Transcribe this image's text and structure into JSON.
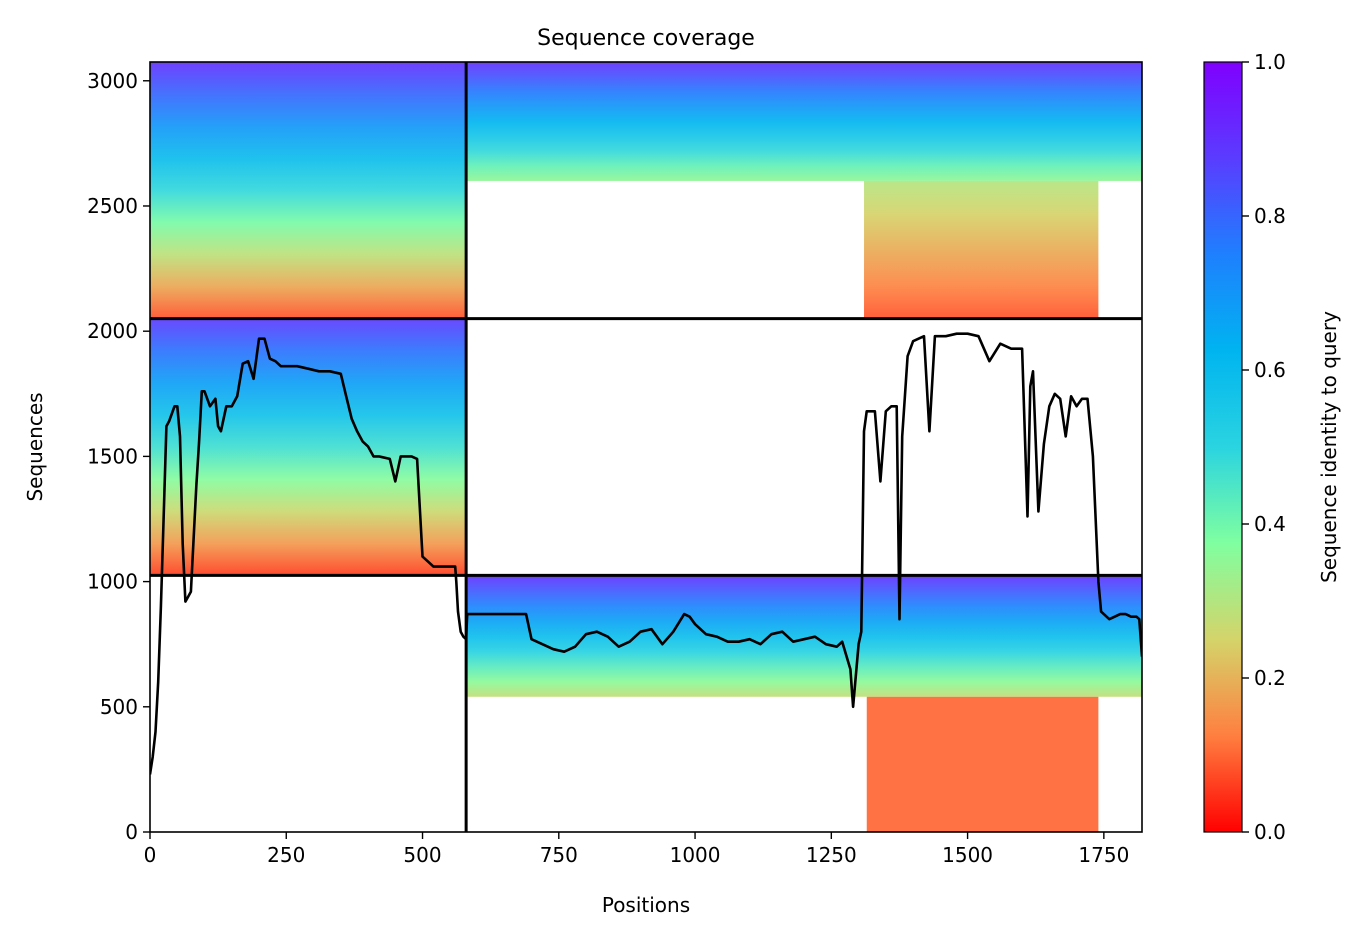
{
  "chart_data": {
    "type": "heatmap",
    "title": "Sequence coverage",
    "xlabel": "Positions",
    "ylabel": "Sequences",
    "colorbar_label": "Sequence identity to query",
    "xlim": [
      0,
      1820
    ],
    "ylim": [
      0,
      3075
    ],
    "xticks": [
      0,
      250,
      500,
      750,
      1000,
      1250,
      1500,
      1750
    ],
    "yticks": [
      0,
      500,
      1000,
      1500,
      2000,
      2500,
      3000
    ],
    "colorbar_range": [
      0.0,
      1.0
    ],
    "colorbar_ticks": [
      0.0,
      0.2,
      0.4,
      0.6,
      0.8,
      1.0
    ],
    "colormap": "rainbow_r",
    "colormap_stops": [
      "#ff0000",
      "#ff7f40",
      "#d4d46a",
      "#80ffa0",
      "#2ad4e0",
      "#00b4f0",
      "#1e80fe",
      "#5a3cff",
      "#8000ff"
    ],
    "grid": false,
    "chain_breaks_x": [
      580
    ],
    "chain_breaks_y": [
      1025,
      2050
    ],
    "coverage_blocks": [
      {
        "x": [
          0,
          580
        ],
        "y": [
          2050,
          3075
        ],
        "identity_top": 0.9,
        "identity_bottom": 0.08
      },
      {
        "x": [
          580,
          1820
        ],
        "y": [
          2600,
          3075
        ],
        "identity_top": 0.9,
        "identity_bottom": 0.35
      },
      {
        "x": [
          1310,
          1740
        ],
        "y": [
          2050,
          2600
        ],
        "identity_top": 0.3,
        "identity_bottom": 0.08
      },
      {
        "x": [
          0,
          580
        ],
        "y": [
          1025,
          2050
        ],
        "identity_top": 0.88,
        "identity_bottom": 0.06
      },
      {
        "x": [
          580,
          1820
        ],
        "y": [
          540,
          1025
        ],
        "identity_top": 0.9,
        "identity_bottom": 0.28
      },
      {
        "x": [
          1315,
          1740
        ],
        "y": [
          0,
          540
        ],
        "identity_top": 0.1,
        "identity_bottom": 0.1
      }
    ],
    "series": [
      {
        "type": "line",
        "color": "#000000",
        "x": [
          0,
          5,
          10,
          15,
          20,
          25,
          30,
          35,
          45,
          50,
          55,
          60,
          65,
          70,
          75,
          80,
          85,
          90,
          95,
          100,
          110,
          120,
          125,
          130,
          140,
          150,
          160,
          170,
          180,
          190,
          200,
          210,
          220,
          230,
          240,
          250,
          270,
          290,
          310,
          330,
          350,
          360,
          370,
          380,
          390,
          400,
          410,
          420,
          440,
          450,
          460,
          480,
          490,
          500,
          510,
          520,
          530,
          540,
          560,
          562,
          565,
          570,
          575,
          580,
          582,
          600,
          690,
          700,
          720,
          740,
          760,
          780,
          800,
          820,
          840,
          860,
          880,
          900,
          920,
          940,
          960,
          980,
          990,
          1000,
          1020,
          1040,
          1060,
          1080,
          1100,
          1120,
          1140,
          1160,
          1180,
          1200,
          1220,
          1240,
          1260,
          1270,
          1285,
          1290,
          1300,
          1305,
          1310,
          1315,
          1320,
          1330,
          1340,
          1350,
          1360,
          1370,
          1375,
          1380,
          1390,
          1400,
          1410,
          1420,
          1430,
          1440,
          1460,
          1480,
          1500,
          1520,
          1540,
          1560,
          1580,
          1600,
          1610,
          1615,
          1620,
          1630,
          1640,
          1650,
          1660,
          1670,
          1680,
          1690,
          1700,
          1710,
          1720,
          1730,
          1740,
          1745,
          1750,
          1760,
          1770,
          1780,
          1790,
          1800,
          1810,
          1815,
          1820
        ],
        "y": [
          230,
          300,
          400,
          600,
          900,
          1250,
          1620,
          1640,
          1700,
          1700,
          1580,
          1150,
          920,
          940,
          960,
          1170,
          1380,
          1560,
          1760,
          1760,
          1700,
          1730,
          1620,
          1600,
          1700,
          1700,
          1740,
          1870,
          1880,
          1810,
          1970,
          1970,
          1890,
          1880,
          1860,
          1860,
          1860,
          1850,
          1840,
          1840,
          1830,
          1740,
          1650,
          1600,
          1560,
          1540,
          1500,
          1500,
          1490,
          1400,
          1500,
          1500,
          1490,
          1100,
          1080,
          1060,
          1060,
          1060,
          1060,
          1000,
          880,
          800,
          780,
          770,
          870,
          870,
          870,
          770,
          750,
          730,
          720,
          740,
          790,
          800,
          780,
          740,
          760,
          800,
          810,
          750,
          800,
          870,
          860,
          830,
          790,
          780,
          760,
          760,
          770,
          750,
          790,
          800,
          760,
          770,
          780,
          750,
          740,
          760,
          650,
          500,
          750,
          800,
          1600,
          1680,
          1680,
          1680,
          1400,
          1680,
          1700,
          1700,
          850,
          1580,
          1900,
          1960,
          1970,
          1980,
          1600,
          1980,
          1980,
          1990,
          1990,
          1980,
          1880,
          1950,
          1930,
          1930,
          1260,
          1780,
          1840,
          1280,
          1550,
          1700,
          1750,
          1730,
          1580,
          1740,
          1700,
          1730,
          1730,
          1500,
          1000,
          880,
          870,
          850,
          860,
          870,
          870,
          860,
          860,
          850,
          700
        ]
      }
    ]
  }
}
